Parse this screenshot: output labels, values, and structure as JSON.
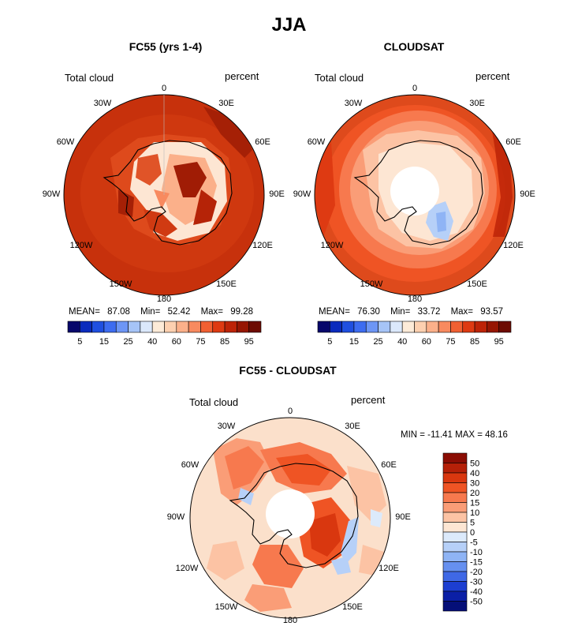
{
  "figure": {
    "title": "JJA"
  },
  "panels": [
    {
      "title": "FC55 (yrs 1-4)",
      "variable": "Total cloud",
      "units": "percent",
      "stats": {
        "mean_label": "MEAN=",
        "mean": "87.08",
        "min_label": "Min=",
        "min": "52.42",
        "max_label": "Max=",
        "max": "99.28"
      }
    },
    {
      "title": "CLOUDSAT",
      "variable": "Total cloud",
      "units": "percent",
      "stats": {
        "mean_label": "MEAN=",
        "mean": "76.30",
        "min_label": "Min=",
        "min": "33.72",
        "max_label": "Max=",
        "max": "93.57"
      }
    },
    {
      "title": "FC55 - CLOUDSAT",
      "variable": "Total cloud",
      "units": "percent",
      "stats_text": "MIN = -11.41 MAX =  48.16"
    }
  ],
  "lon_labels": [
    "0",
    "30E",
    "60E",
    "90E",
    "120E",
    "150E",
    "180",
    "150W",
    "120W",
    "90W",
    "60W",
    "30W"
  ],
  "colorbar_abs": {
    "tick_labels": [
      "5",
      "15",
      "25",
      "40",
      "60",
      "75",
      "85",
      "95"
    ],
    "colors": [
      "#08086b",
      "#0a2bbd",
      "#1f4fe0",
      "#3d6cf0",
      "#6d96f5",
      "#a6c4f7",
      "#dbe8fb",
      "#fdebd8",
      "#fdd0b0",
      "#fbb08a",
      "#f88a5f",
      "#f16032",
      "#de3a12",
      "#bd2307",
      "#961603",
      "#6d0b02"
    ]
  },
  "colorbar_diff": {
    "tick_labels": [
      "50",
      "40",
      "30",
      "20",
      "15",
      "10",
      "5",
      "0",
      "-5",
      "-10",
      "-15",
      "-20",
      "-30",
      "-40",
      "-50"
    ],
    "colors": [
      "#8b0d04",
      "#b52008",
      "#d9370f",
      "#ef5424",
      "#f7794e",
      "#fa9d77",
      "#fcc3a4",
      "#fde6d3",
      "#dceafb",
      "#b6d0f8",
      "#8fb4f5",
      "#6690f0",
      "#3f68e6",
      "#1c3ed1",
      "#0b1fa6",
      "#050f78"
    ]
  },
  "colors": {
    "fc55_base": "#c7310c",
    "fc55_ring": "#d43c12",
    "cs_base": "#e75a2c",
    "diff_base": "#fbe0cb"
  }
}
